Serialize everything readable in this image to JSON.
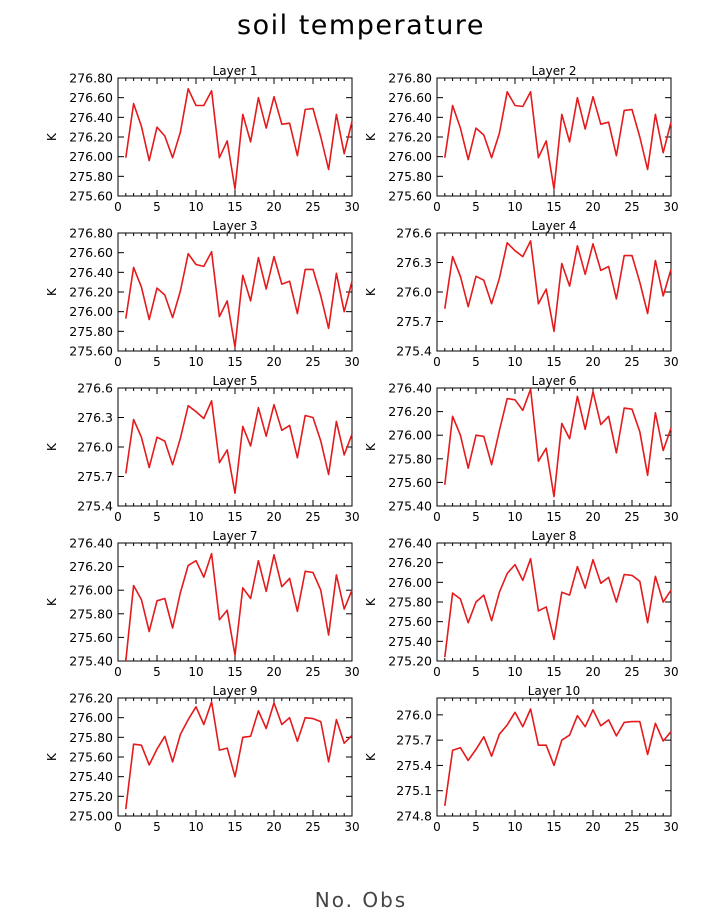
{
  "figure": {
    "title": "soil temperature",
    "xlabel": "No. Obs"
  },
  "chart_data": [
    {
      "type": "line",
      "title": "Layer 1",
      "ylabel": "K",
      "xlim": [
        0,
        30
      ],
      "ylim": [
        275.6,
        276.8
      ],
      "yticks": [
        "275.60",
        "275.80",
        "276.00",
        "276.20",
        "276.40",
        "276.60",
        "276.80"
      ],
      "xticks": [
        "0",
        "5",
        "10",
        "15",
        "20",
        "25",
        "30"
      ],
      "line_color": "#e41a1c",
      "x": [
        1,
        2,
        3,
        4,
        5,
        6,
        7,
        8,
        9,
        10,
        11,
        12,
        13,
        14,
        15,
        16,
        17,
        18,
        19,
        20,
        21,
        22,
        23,
        24,
        25,
        26,
        27,
        28,
        29,
        30
      ],
      "y": [
        275.99,
        276.54,
        276.31,
        275.96,
        276.3,
        276.21,
        275.99,
        276.25,
        276.69,
        276.52,
        276.52,
        276.67,
        275.99,
        276.16,
        275.67,
        276.43,
        276.15,
        276.6,
        276.29,
        276.61,
        276.33,
        276.34,
        276.01,
        276.48,
        276.49,
        276.2,
        275.87,
        276.43,
        276.03,
        276.36
      ]
    },
    {
      "type": "line",
      "title": "Layer 2",
      "ylabel": "K",
      "xlim": [
        0,
        30
      ],
      "ylim": [
        275.6,
        276.8
      ],
      "yticks": [
        "275.60",
        "275.80",
        "276.00",
        "276.20",
        "276.40",
        "276.60",
        "276.80"
      ],
      "xticks": [
        "0",
        "5",
        "10",
        "15",
        "20",
        "25",
        "30"
      ],
      "line_color": "#e41a1c",
      "x": [
        1,
        2,
        3,
        4,
        5,
        6,
        7,
        8,
        9,
        10,
        11,
        12,
        13,
        14,
        15,
        16,
        17,
        18,
        19,
        20,
        21,
        22,
        23,
        24,
        25,
        26,
        27,
        28,
        29,
        30
      ],
      "y": [
        275.99,
        276.52,
        276.29,
        275.97,
        276.29,
        276.22,
        275.99,
        276.24,
        276.66,
        276.52,
        276.51,
        276.66,
        275.99,
        276.16,
        275.67,
        276.43,
        276.15,
        276.6,
        276.28,
        276.61,
        276.33,
        276.35,
        276.01,
        276.47,
        276.48,
        276.2,
        275.87,
        276.43,
        276.04,
        276.35
      ]
    },
    {
      "type": "line",
      "title": "Layer 3",
      "ylabel": "K",
      "xlim": [
        0,
        30
      ],
      "ylim": [
        275.6,
        276.8
      ],
      "yticks": [
        "275.60",
        "275.80",
        "276.00",
        "276.20",
        "276.40",
        "276.60",
        "276.80"
      ],
      "xticks": [
        "0",
        "5",
        "10",
        "15",
        "20",
        "25",
        "30"
      ],
      "line_color": "#e41a1c",
      "x": [
        1,
        2,
        3,
        4,
        5,
        6,
        7,
        8,
        9,
        10,
        11,
        12,
        13,
        14,
        15,
        16,
        17,
        18,
        19,
        20,
        21,
        22,
        23,
        24,
        25,
        26,
        27,
        28,
        29,
        30
      ],
      "y": [
        275.93,
        276.45,
        276.25,
        275.92,
        276.24,
        276.17,
        275.94,
        276.21,
        276.59,
        276.48,
        276.46,
        276.61,
        275.95,
        276.11,
        275.64,
        276.37,
        276.11,
        276.55,
        276.23,
        276.56,
        276.28,
        276.31,
        275.98,
        276.43,
        276.43,
        276.16,
        275.83,
        276.39,
        276.0,
        276.31
      ]
    },
    {
      "type": "line",
      "title": "Layer 4",
      "ylabel": "K",
      "xlim": [
        0,
        30
      ],
      "ylim": [
        275.4,
        276.6
      ],
      "yticks": [
        "275.4",
        "275.7",
        "276.0",
        "276.3",
        "276.6"
      ],
      "xticks": [
        "0",
        "5",
        "10",
        "15",
        "20",
        "25",
        "30"
      ],
      "line_color": "#e41a1c",
      "x": [
        1,
        2,
        3,
        4,
        5,
        6,
        7,
        8,
        9,
        10,
        11,
        12,
        13,
        14,
        15,
        16,
        17,
        18,
        19,
        20,
        21,
        22,
        23,
        24,
        25,
        26,
        27,
        28,
        29,
        30
      ],
      "y": [
        275.83,
        276.36,
        276.16,
        275.85,
        276.16,
        276.12,
        275.88,
        276.14,
        276.5,
        276.42,
        276.36,
        276.52,
        275.88,
        276.03,
        275.6,
        276.29,
        276.06,
        276.47,
        276.18,
        276.49,
        276.22,
        276.26,
        275.93,
        276.37,
        276.37,
        276.1,
        275.78,
        276.32,
        275.96,
        276.23
      ]
    },
    {
      "type": "line",
      "title": "Layer 5",
      "ylabel": "K",
      "xlim": [
        0,
        30
      ],
      "ylim": [
        275.4,
        276.6
      ],
      "yticks": [
        "275.4",
        "275.7",
        "276.0",
        "276.3",
        "276.6"
      ],
      "xticks": [
        "0",
        "5",
        "10",
        "15",
        "20",
        "25",
        "30"
      ],
      "line_color": "#e41a1c",
      "x": [
        1,
        2,
        3,
        4,
        5,
        6,
        7,
        8,
        9,
        10,
        11,
        12,
        13,
        14,
        15,
        16,
        17,
        18,
        19,
        20,
        21,
        22,
        23,
        24,
        25,
        26,
        27,
        28,
        29,
        30
      ],
      "y": [
        275.73,
        276.28,
        276.1,
        275.79,
        276.1,
        276.06,
        275.82,
        276.09,
        276.42,
        276.36,
        276.29,
        276.47,
        275.84,
        275.97,
        275.53,
        276.21,
        276.01,
        276.4,
        276.11,
        276.43,
        276.17,
        276.22,
        275.89,
        276.32,
        276.3,
        276.06,
        275.72,
        276.26,
        275.92,
        276.13
      ]
    },
    {
      "type": "line",
      "title": "Layer 6",
      "ylabel": "K",
      "xlim": [
        0,
        30
      ],
      "ylim": [
        275.4,
        276.4
      ],
      "yticks": [
        "275.40",
        "275.60",
        "275.80",
        "276.00",
        "276.20",
        "276.40"
      ],
      "xticks": [
        "0",
        "5",
        "10",
        "15",
        "20",
        "25",
        "30"
      ],
      "line_color": "#e41a1c",
      "x": [
        1,
        2,
        3,
        4,
        5,
        6,
        7,
        8,
        9,
        10,
        11,
        12,
        13,
        14,
        15,
        16,
        17,
        18,
        19,
        20,
        21,
        22,
        23,
        24,
        25,
        26,
        27,
        28,
        29,
        30
      ],
      "y": [
        275.58,
        276.16,
        276.0,
        275.72,
        276.0,
        275.99,
        275.75,
        276.04,
        276.31,
        276.3,
        276.21,
        276.39,
        275.78,
        275.89,
        275.48,
        276.1,
        275.97,
        276.33,
        276.05,
        276.37,
        276.09,
        276.16,
        275.85,
        276.23,
        276.22,
        276.03,
        275.66,
        276.19,
        275.87,
        276.06
      ]
    },
    {
      "type": "line",
      "title": "Layer 7",
      "ylabel": "K",
      "xlim": [
        0,
        30
      ],
      "ylim": [
        275.4,
        276.4
      ],
      "yticks": [
        "275.40",
        "275.60",
        "275.80",
        "276.00",
        "276.20",
        "276.40"
      ],
      "xticks": [
        "0",
        "5",
        "10",
        "15",
        "20",
        "25",
        "30"
      ],
      "line_color": "#e41a1c",
      "x": [
        1,
        2,
        3,
        4,
        5,
        6,
        7,
        8,
        9,
        10,
        11,
        12,
        13,
        14,
        15,
        16,
        17,
        18,
        19,
        20,
        21,
        22,
        23,
        24,
        25,
        26,
        27,
        28,
        29,
        30
      ],
      "y": [
        275.4,
        276.04,
        275.92,
        275.65,
        275.91,
        275.93,
        275.68,
        275.98,
        276.21,
        276.25,
        276.11,
        276.31,
        275.75,
        275.83,
        275.45,
        276.02,
        275.93,
        276.25,
        275.99,
        276.3,
        276.03,
        276.1,
        275.82,
        276.16,
        276.15,
        276.0,
        275.62,
        276.13,
        275.84,
        276.0
      ]
    },
    {
      "type": "line",
      "title": "Layer 8",
      "ylabel": "K",
      "xlim": [
        0,
        30
      ],
      "ylim": [
        275.2,
        276.4
      ],
      "yticks": [
        "275.20",
        "275.40",
        "275.60",
        "275.80",
        "276.00",
        "276.20",
        "276.40"
      ],
      "xticks": [
        "0",
        "5",
        "10",
        "15",
        "20",
        "25",
        "30"
      ],
      "line_color": "#e41a1c",
      "x": [
        1,
        2,
        3,
        4,
        5,
        6,
        7,
        8,
        9,
        10,
        11,
        12,
        13,
        14,
        15,
        16,
        17,
        18,
        19,
        20,
        21,
        22,
        23,
        24,
        25,
        26,
        27,
        28,
        29,
        30
      ],
      "y": [
        275.24,
        275.89,
        275.83,
        275.59,
        275.8,
        275.87,
        275.61,
        275.9,
        276.09,
        276.18,
        276.02,
        276.24,
        275.71,
        275.75,
        275.42,
        275.9,
        275.87,
        276.16,
        275.94,
        276.23,
        275.99,
        276.05,
        275.8,
        276.08,
        276.07,
        276.01,
        275.59,
        276.06,
        275.8,
        275.92
      ]
    },
    {
      "type": "line",
      "title": "Layer 9",
      "ylabel": "K",
      "xlim": [
        0,
        30
      ],
      "ylim": [
        275.0,
        276.2
      ],
      "yticks": [
        "275.00",
        "275.20",
        "275.40",
        "275.60",
        "275.80",
        "276.00",
        "276.20"
      ],
      "xticks": [
        "0",
        "5",
        "10",
        "15",
        "20",
        "25",
        "30"
      ],
      "line_color": "#e41a1c",
      "x": [
        1,
        2,
        3,
        4,
        5,
        6,
        7,
        8,
        9,
        10,
        11,
        12,
        13,
        14,
        15,
        16,
        17,
        18,
        19,
        20,
        21,
        22,
        23,
        24,
        25,
        26,
        27,
        28,
        29,
        30
      ],
      "y": [
        275.07,
        275.73,
        275.72,
        275.52,
        275.68,
        275.81,
        275.55,
        275.83,
        275.98,
        276.11,
        275.93,
        276.16,
        275.67,
        275.69,
        275.4,
        275.8,
        275.81,
        276.07,
        275.89,
        276.15,
        275.93,
        276.0,
        275.76,
        276.0,
        275.99,
        275.96,
        275.55,
        275.98,
        275.74,
        275.82
      ]
    },
    {
      "type": "line",
      "title": "Layer 10",
      "ylabel": "K",
      "xlim": [
        0,
        30
      ],
      "ylim": [
        274.8,
        276.2
      ],
      "yticks": [
        "274.8",
        "275.1",
        "275.4",
        "275.7",
        "276.0"
      ],
      "xticks": [
        "0",
        "5",
        "10",
        "15",
        "20",
        "25",
        "30"
      ],
      "line_color": "#e41a1c",
      "x": [
        1,
        2,
        3,
        4,
        5,
        6,
        7,
        8,
        9,
        10,
        11,
        12,
        13,
        14,
        15,
        16,
        17,
        18,
        19,
        20,
        21,
        22,
        23,
        24,
        25,
        26,
        27,
        28,
        29,
        30
      ],
      "y": [
        274.92,
        275.58,
        275.61,
        275.46,
        275.59,
        275.74,
        275.51,
        275.77,
        275.88,
        276.03,
        275.86,
        276.07,
        275.64,
        275.64,
        275.4,
        275.7,
        275.76,
        275.99,
        275.86,
        276.06,
        275.87,
        275.94,
        275.75,
        275.91,
        275.92,
        275.92,
        275.53,
        275.9,
        275.69,
        275.8
      ]
    }
  ]
}
